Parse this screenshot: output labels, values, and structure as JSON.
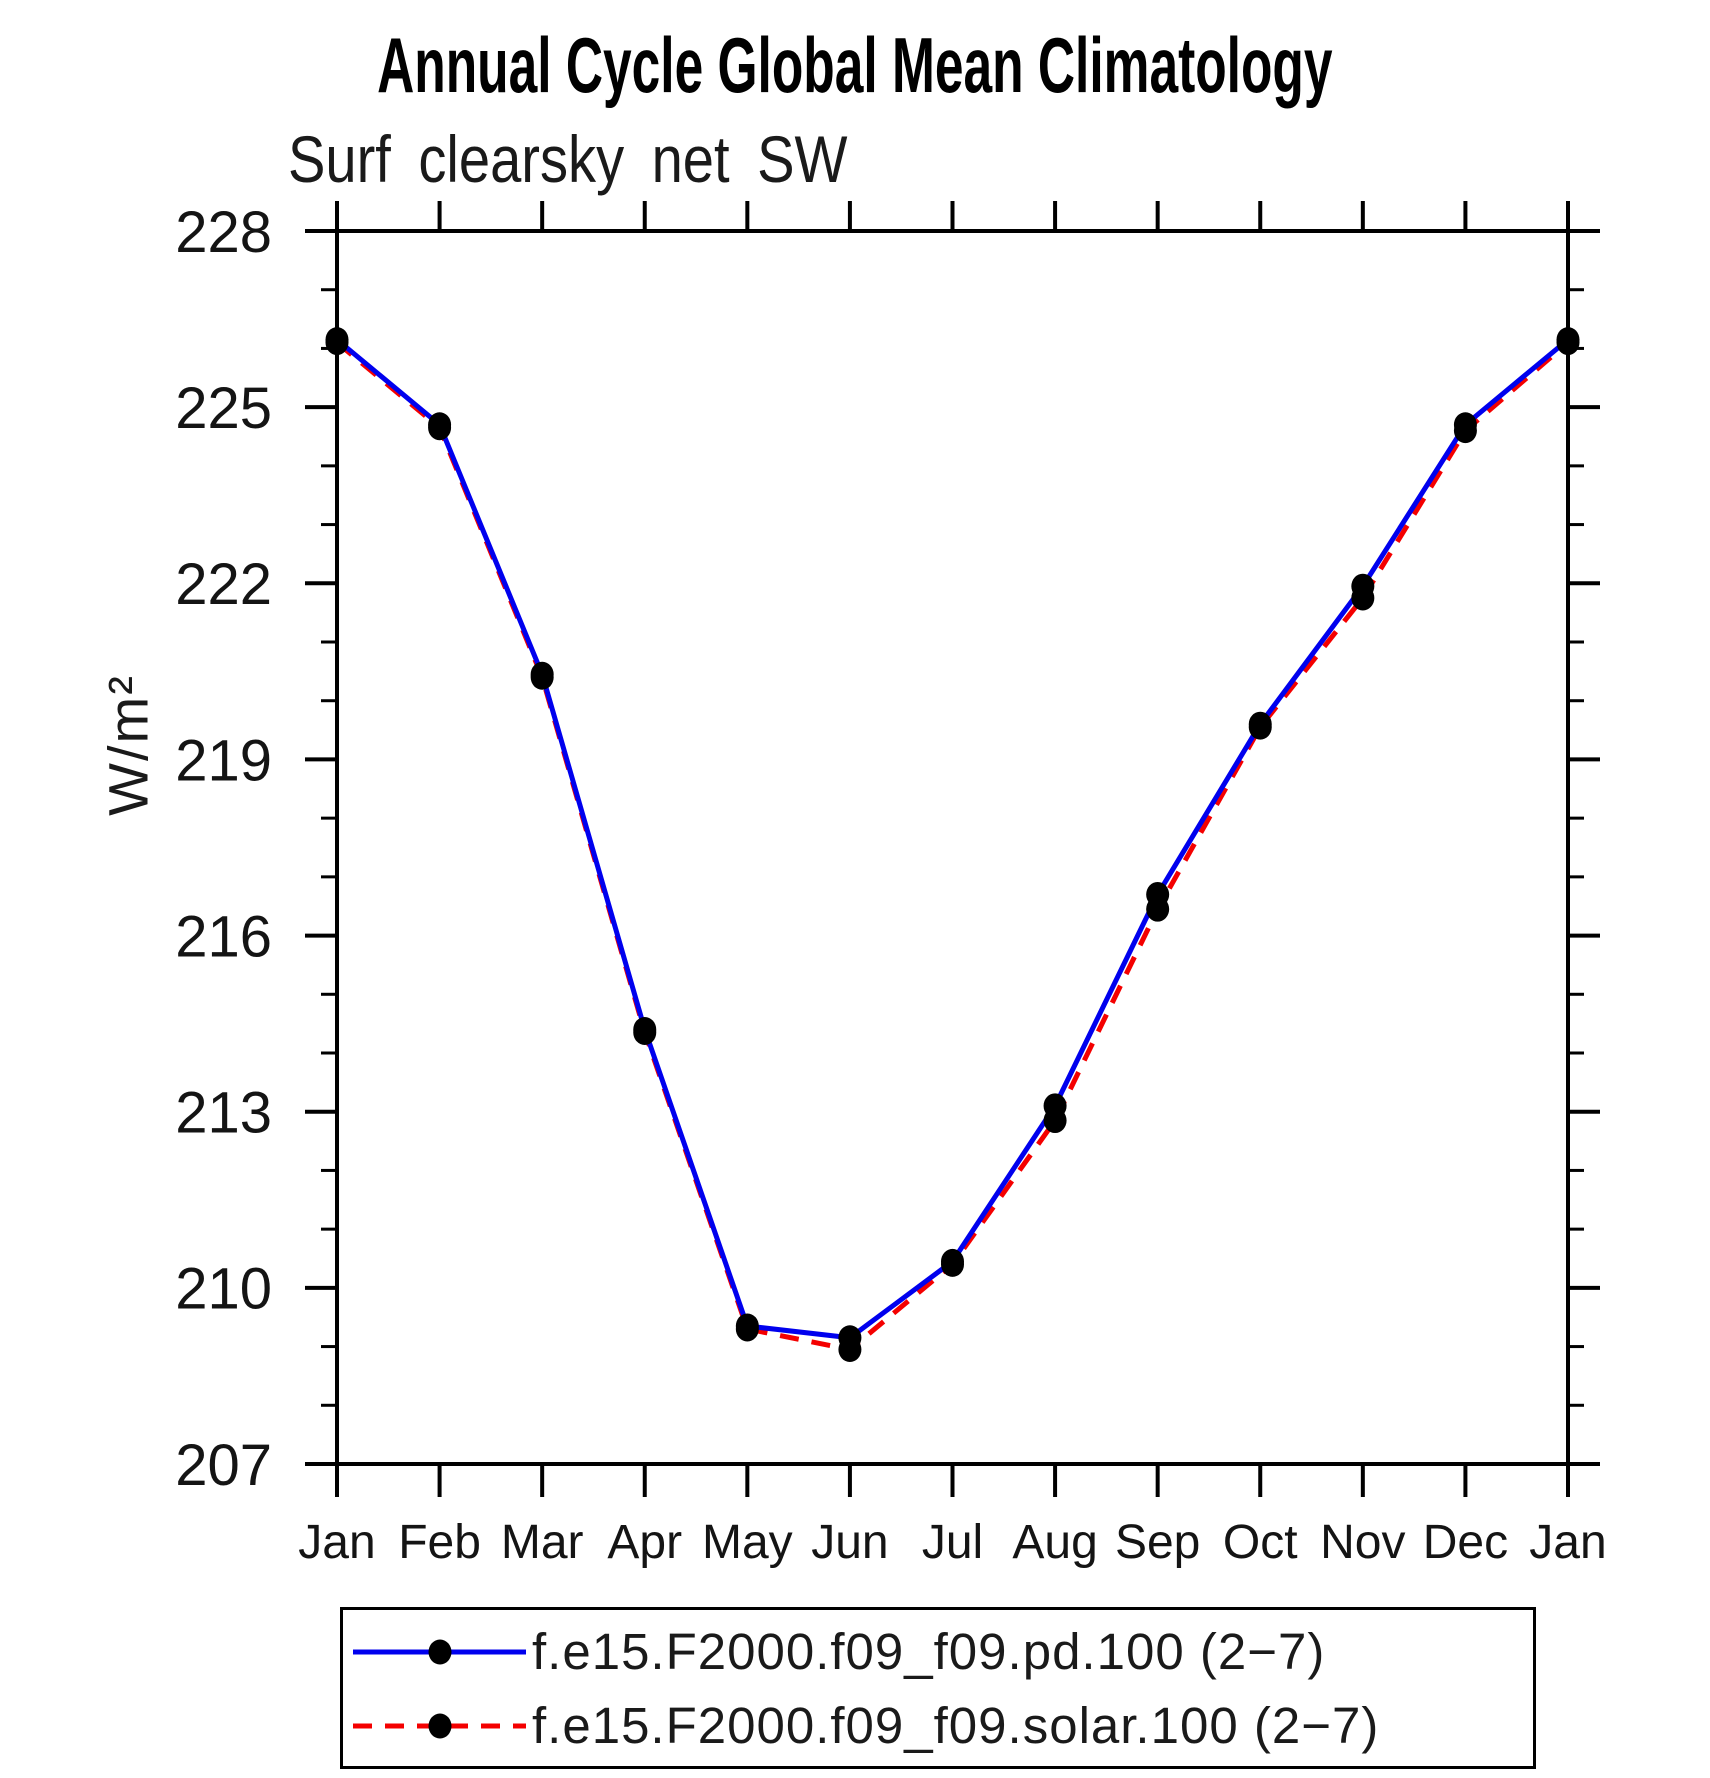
{
  "chart_data": {
    "type": "line",
    "title": "Annual Cycle Global Mean Climatology",
    "subtitle": "Surf clearsky net SW",
    "ylabel": "W/m²",
    "xlabel": "",
    "categories": [
      "Jan",
      "Feb",
      "Mar",
      "Apr",
      "May",
      "Jun",
      "Jul",
      "Aug",
      "Sep",
      "Oct",
      "Nov",
      "Dec",
      "Jan"
    ],
    "ylim": [
      207,
      228
    ],
    "y_major_ticks": [
      207,
      210,
      213,
      216,
      219,
      222,
      225,
      228
    ],
    "y_major_tick_step": 3,
    "y_minor_tick_step": 1,
    "grid": false,
    "legend_position": "bottom",
    "axis_color": "#000000",
    "marker": {
      "shape": "circle",
      "color": "#000000"
    },
    "series": [
      {
        "name": "f.e15.F2000.f09_f09.pd.100 (2−7)",
        "color": "#0000ee",
        "line_style": "solid",
        "values": [
          226.15,
          224.7,
          220.45,
          214.4,
          209.35,
          209.15,
          210.45,
          213.1,
          216.7,
          219.6,
          221.95,
          224.7,
          226.15
        ]
      },
      {
        "name": "f.e15.F2000.f09_f09.solar.100 (2−7)",
        "color": "#f40000",
        "line_style": "dashed",
        "values": [
          226.1,
          224.65,
          220.4,
          214.35,
          209.3,
          208.95,
          210.4,
          212.85,
          216.45,
          219.55,
          221.75,
          224.6,
          226.1
        ]
      }
    ]
  }
}
